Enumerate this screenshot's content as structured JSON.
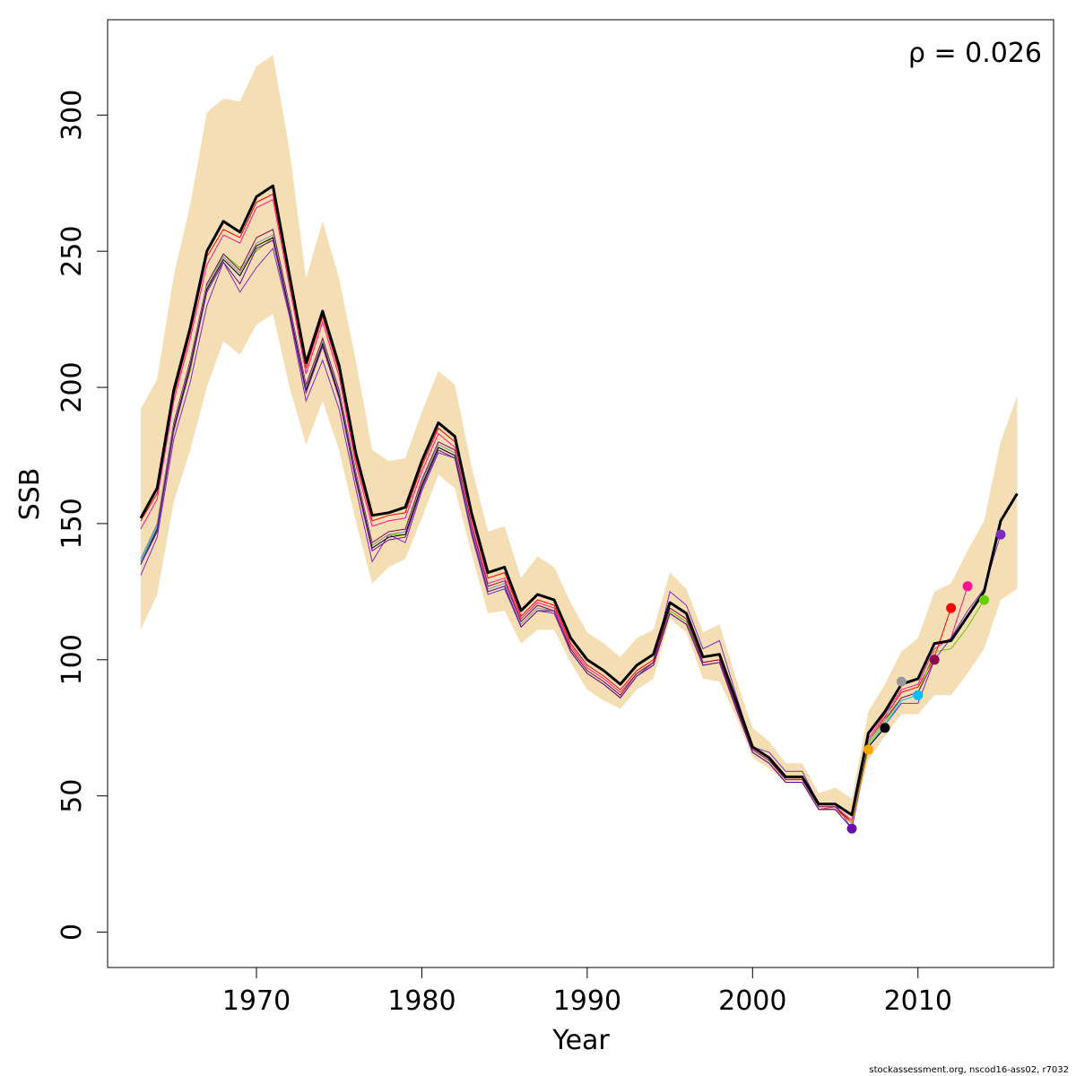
{
  "chart_data": {
    "type": "line",
    "xlabel": "Year",
    "ylabel": "SSB",
    "xlim": [
      1961.9,
      1917.0
    ],
    "ylim": [
      -13,
      335
    ],
    "x_ticks": [
      "1970",
      "1980",
      "1990",
      "2000",
      "2010"
    ],
    "y_ticks": [
      "0",
      "50",
      "100",
      "150",
      "200",
      "250",
      "300"
    ],
    "annotation": "ρ = 0.026",
    "band_color": "#f5deb3",
    "years": [
      1963,
      1964,
      1965,
      1966,
      1967,
      1968,
      1969,
      1970,
      1971,
      1972,
      1973,
      1974,
      1975,
      1976,
      1977,
      1978,
      1979,
      1980,
      1981,
      1982,
      1983,
      1984,
      1985,
      1986,
      1987,
      1988,
      1989,
      1990,
      1991,
      1992,
      1993,
      1994,
      1995,
      1996,
      1997,
      1998,
      1999,
      2000,
      2001,
      2002,
      2003,
      2004,
      2005,
      2006,
      2007,
      2008,
      2009,
      2010,
      2011,
      2012,
      2013,
      2014,
      2015,
      2016
    ],
    "ci_upper": [
      192,
      203,
      241,
      267,
      301,
      306,
      305,
      318,
      322,
      287,
      240,
      261,
      240,
      210,
      177,
      173,
      174,
      191,
      206,
      201,
      171,
      147,
      149,
      130,
      138,
      134,
      121,
      110,
      106,
      101,
      108,
      111,
      132,
      126,
      110,
      113,
      93,
      75,
      70,
      62,
      62,
      51,
      53,
      49,
      81,
      91,
      103,
      108,
      125,
      128,
      140,
      151,
      180,
      197
    ],
    "ci_lower": [
      111,
      124,
      158,
      177,
      200,
      217,
      212,
      223,
      227,
      200,
      179,
      195,
      177,
      151,
      128,
      134,
      137,
      152,
      168,
      163,
      139,
      117,
      118,
      106,
      111,
      111,
      99,
      89,
      85,
      82,
      89,
      93,
      115,
      110,
      93,
      92,
      79,
      64,
      60,
      55,
      55,
      45,
      45,
      41,
      63,
      72,
      80,
      80,
      87,
      87,
      95,
      104,
      122,
      126
    ],
    "main": {
      "name": "",
      "color": "#000000",
      "values": [
        152,
        163,
        199,
        222,
        250,
        261,
        257,
        270,
        274,
        241,
        209,
        228,
        208,
        176,
        153,
        154,
        156,
        173,
        187,
        182,
        154,
        132,
        134,
        118,
        124,
        122,
        108,
        100,
        96,
        91,
        98,
        102,
        121,
        117,
        101,
        102,
        85,
        68,
        64,
        57,
        57,
        47,
        47,
        43,
        73,
        81,
        91,
        93,
        106,
        107,
        116,
        125,
        151,
        161
      ]
    },
    "peels": [
      {
        "color": "#ff0000",
        "end_year": 2012,
        "end_value": 119,
        "values": [
          151,
          161,
          197,
          220,
          248,
          258,
          255,
          268,
          271,
          239,
          207,
          226,
          206,
          174,
          151,
          153,
          154,
          171,
          185,
          180,
          152,
          130,
          132,
          116,
          122,
          120,
          106,
          98,
          94,
          89,
          96,
          100,
          119,
          115,
          99,
          100,
          83,
          66,
          62,
          55,
          55,
          45,
          45,
          41,
          70,
          79,
          88,
          90,
          101,
          119
        ]
      },
      {
        "color": "#ff1493",
        "end_year": 2013,
        "end_value": 127,
        "values": [
          148,
          159,
          195,
          218,
          245,
          256,
          253,
          266,
          269,
          237,
          205,
          224,
          204,
          172,
          149,
          151,
          152,
          169,
          183,
          178,
          150,
          128,
          130,
          115,
          121,
          119,
          105,
          97,
          93,
          88,
          95,
          99,
          118,
          114,
          98,
          99,
          82,
          66,
          62,
          55,
          55,
          45,
          46,
          41,
          71,
          80,
          89,
          91,
          104,
          108,
          127
        ]
      },
      {
        "color": "#66cd00",
        "end_year": 2014,
        "end_value": 122,
        "values": [
          136,
          149,
          185,
          206,
          236,
          249,
          244,
          250,
          255,
          228,
          199,
          216,
          197,
          167,
          142,
          146,
          146,
          164,
          178,
          175,
          148,
          126,
          128,
          114,
          120,
          118,
          104,
          96,
          92,
          87,
          95,
          99,
          118,
          114,
          98,
          99,
          82,
          66,
          62,
          55,
          55,
          45,
          45,
          40,
          69,
          77,
          86,
          88,
          103,
          104,
          112,
          122
        ]
      },
      {
        "color": "#7b2cbf",
        "end_year": 2015,
        "end_value": 146,
        "values": [
          131,
          145,
          181,
          202,
          230,
          246,
          235,
          244,
          251,
          226,
          195,
          210,
          192,
          163,
          136,
          146,
          143,
          162,
          176,
          174,
          146,
          124,
          126,
          112,
          118,
          117,
          103,
          95,
          91,
          86,
          94,
          99,
          125,
          120,
          104,
          107,
          87,
          68,
          66,
          59,
          59,
          47,
          47,
          38,
          68,
          76,
          84,
          84,
          100,
          108,
          118,
          126,
          146
        ]
      },
      {
        "color": "#8b0a50",
        "end_year": 2011,
        "end_value": 100,
        "values": [
          137,
          150,
          187,
          210,
          238,
          249,
          243,
          255,
          258,
          230,
          201,
          218,
          199,
          169,
          143,
          147,
          148,
          166,
          180,
          177,
          149,
          127,
          129,
          114,
          120,
          118,
          104,
          96,
          92,
          87,
          95,
          99,
          119,
          115,
          99,
          100,
          83,
          67,
          63,
          56,
          56,
          46,
          46,
          40,
          70,
          78,
          86,
          88,
          100
        ]
      },
      {
        "color": "#00bfff",
        "end_year": 2010,
        "end_value": 87,
        "values": [
          136,
          149,
          186,
          209,
          237,
          248,
          242,
          253,
          256,
          229,
          200,
          217,
          198,
          168,
          142,
          146,
          147,
          165,
          179,
          176,
          148,
          126,
          128,
          113,
          119,
          118,
          103,
          95,
          91,
          86,
          94,
          98,
          117,
          113,
          98,
          99,
          82,
          66,
          62,
          55,
          55,
          45,
          45,
          40,
          68,
          76,
          85,
          87
        ]
      },
      {
        "color": "#999999",
        "end_year": 2009,
        "end_value": 92,
        "values": [
          137,
          150,
          186,
          209,
          237,
          248,
          242,
          253,
          256,
          229,
          200,
          217,
          198,
          168,
          142,
          146,
          147,
          165,
          179,
          176,
          148,
          126,
          128,
          113,
          119,
          118,
          103,
          95,
          91,
          86,
          94,
          98,
          117,
          113,
          98,
          99,
          82,
          66,
          62,
          55,
          55,
          45,
          45,
          40,
          70,
          78,
          92
        ]
      },
      {
        "color": "#000000",
        "end_year": 2008,
        "end_value": 75,
        "values": [
          135,
          148,
          185,
          208,
          236,
          247,
          241,
          252,
          255,
          228,
          199,
          216,
          197,
          167,
          141,
          145,
          146,
          164,
          178,
          175,
          147,
          125,
          127,
          112,
          118,
          118,
          103,
          95,
          91,
          86,
          94,
          98,
          117,
          113,
          98,
          99,
          82,
          66,
          62,
          55,
          55,
          45,
          45,
          40,
          68,
          75
        ]
      },
      {
        "color": "#ffa500",
        "end_year": 2007,
        "end_value": 67,
        "values": [
          135,
          147,
          184,
          207,
          235,
          246,
          238,
          251,
          254,
          227,
          198,
          215,
          196,
          166,
          140,
          144,
          145,
          163,
          177,
          174,
          147,
          125,
          127,
          112,
          118,
          118,
          103,
          95,
          91,
          86,
          94,
          98,
          117,
          113,
          98,
          99,
          82,
          66,
          62,
          55,
          55,
          45,
          45,
          40,
          67
        ]
      },
      {
        "color": "#6a0dad",
        "end_year": 2006,
        "end_value": 38,
        "values": [
          135,
          147,
          184,
          207,
          235,
          246,
          238,
          251,
          254,
          227,
          198,
          215,
          196,
          166,
          140,
          144,
          145,
          163,
          177,
          174,
          147,
          125,
          127,
          112,
          118,
          118,
          103,
          95,
          91,
          86,
          94,
          98,
          117,
          113,
          98,
          99,
          82,
          66,
          62,
          55,
          55,
          45,
          45,
          38
        ]
      }
    ]
  },
  "footer": "stockassessment.org, nscod16-ass02, r7032"
}
